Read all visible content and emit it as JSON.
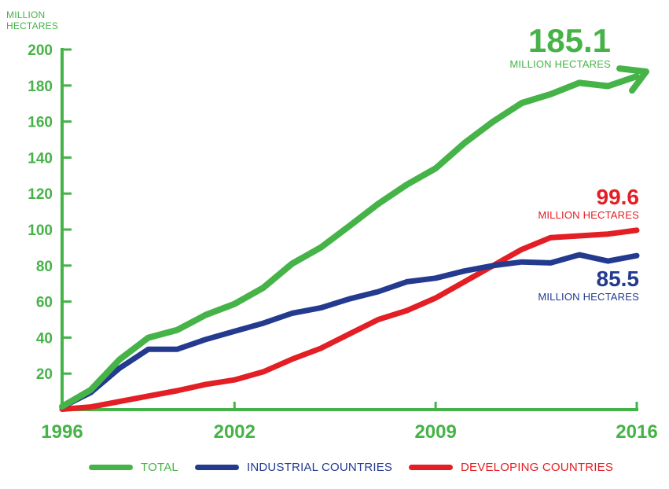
{
  "chart_data": {
    "type": "line",
    "y_unit_label": "MILLION HECTARES",
    "xlim": [
      1996,
      2016
    ],
    "ylim": [
      0,
      200
    ],
    "y_ticks": [
      20,
      40,
      60,
      80,
      100,
      120,
      140,
      160,
      180,
      200
    ],
    "x_ticks": [
      1996,
      2002,
      2009,
      2016
    ],
    "colors": {
      "axis": "#46b348",
      "total": "#46b348",
      "industrial": "#233a8f",
      "developing": "#e31e24"
    },
    "series": [
      {
        "key": "total",
        "name": "TOTAL",
        "color": "#46b348",
        "x": [
          1996,
          1997,
          1998,
          1999,
          2000,
          2001,
          2002,
          2003,
          2004,
          2005,
          2006,
          2007,
          2008,
          2009,
          2010,
          2011,
          2012,
          2013,
          2014,
          2015,
          2016
        ],
        "values": [
          1.7,
          11,
          27.8,
          39.9,
          44.2,
          52.6,
          58.7,
          67.7,
          81,
          90,
          102,
          114.3,
          125,
          134,
          148,
          160,
          170.3,
          175.2,
          181.5,
          179.7,
          185.1
        ]
      },
      {
        "key": "industrial",
        "name": "INDUSTRIAL COUNTRIES",
        "color": "#233a8f",
        "x": [
          1996,
          1997,
          1998,
          1999,
          2000,
          2001,
          2002,
          2003,
          2004,
          2005,
          2006,
          2007,
          2008,
          2009,
          2010,
          2011,
          2012,
          2013,
          2014,
          2015,
          2016
        ],
        "values": [
          1.5,
          9.5,
          23,
          33.5,
          33.5,
          39,
          43.5,
          48,
          53.5,
          56.5,
          61.5,
          65.5,
          71,
          73,
          77,
          80,
          82,
          81.5,
          86,
          82.5,
          85.5
        ]
      },
      {
        "key": "developing",
        "name": "DEVELOPING COUNTRIES",
        "color": "#e31e24",
        "x": [
          1996,
          1997,
          1998,
          1999,
          2000,
          2001,
          2002,
          2003,
          2004,
          2005,
          2006,
          2007,
          2008,
          2009,
          2010,
          2011,
          2012,
          2013,
          2014,
          2015,
          2016
        ],
        "values": [
          0.2,
          1.5,
          4.5,
          7.5,
          10.5,
          14,
          16.5,
          21,
          28,
          34,
          42,
          50,
          55,
          62,
          71,
          80,
          89,
          95.5,
          96.5,
          97.5,
          99.6
        ]
      }
    ],
    "annotations": [
      {
        "series": "total",
        "value": "185.1",
        "unit": "MILLION HECTARES"
      },
      {
        "series": "developing",
        "value": "99.6",
        "unit": "MILLION HECTARES"
      },
      {
        "series": "industrial",
        "value": "85.5",
        "unit": "MILLION HECTARES"
      }
    ],
    "legend_position": "bottom"
  }
}
